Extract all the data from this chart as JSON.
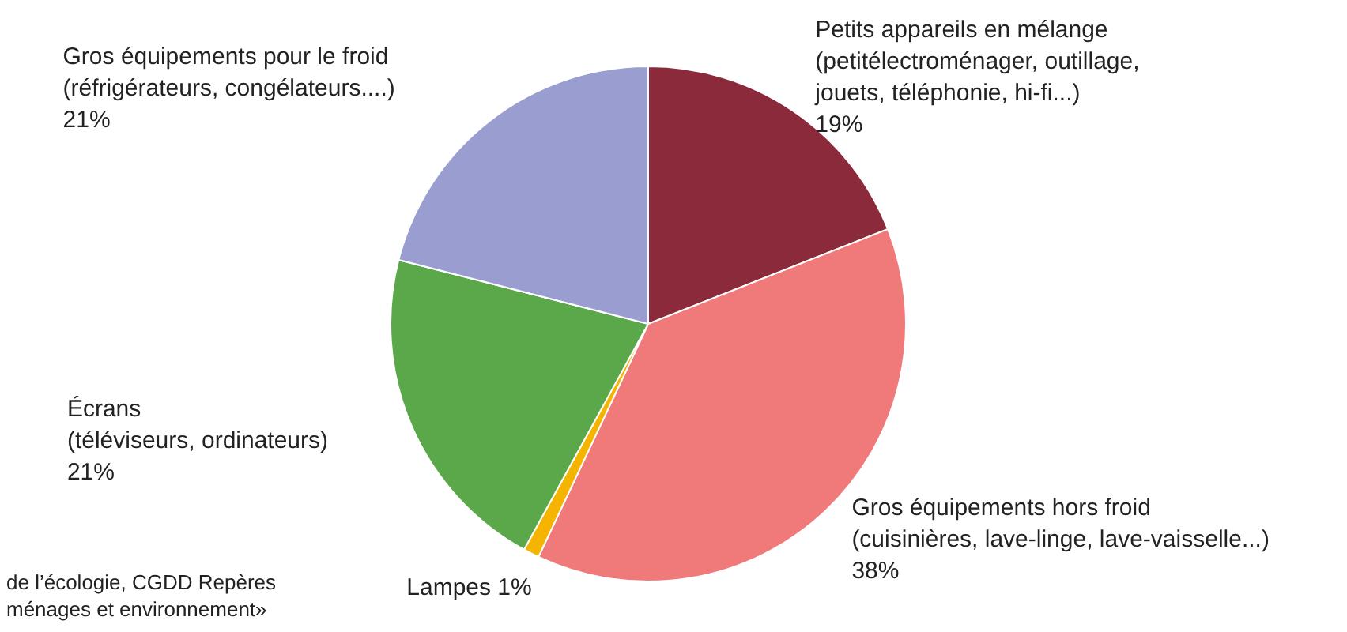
{
  "chart_data": {
    "type": "pie",
    "categories": [
      "Petits appareils en mélange\n(petitélectroménager, outillage,\njouets, téléphonie, hi-fi...)",
      "Gros équipements hors froid\n(cuisinières, lave-linge, lave-vaisselle...)",
      "Lampes",
      "Écrans\n(téléviseurs, ordinateurs)",
      "Gros équipements pour le froid\n(réfrigérateurs, congélateurs....)"
    ],
    "values": [
      19,
      38,
      1,
      21,
      21
    ],
    "value_labels": [
      "19%",
      "38%",
      "1%",
      "21%",
      "21%"
    ],
    "colors": [
      "#8a2a3a",
      "#f07a7a",
      "#f5b400",
      "#5aa84a",
      "#9a9dd0"
    ],
    "annotations": [
      "de l’écologie, CGDD Repères\nménages et environnement»"
    ]
  }
}
